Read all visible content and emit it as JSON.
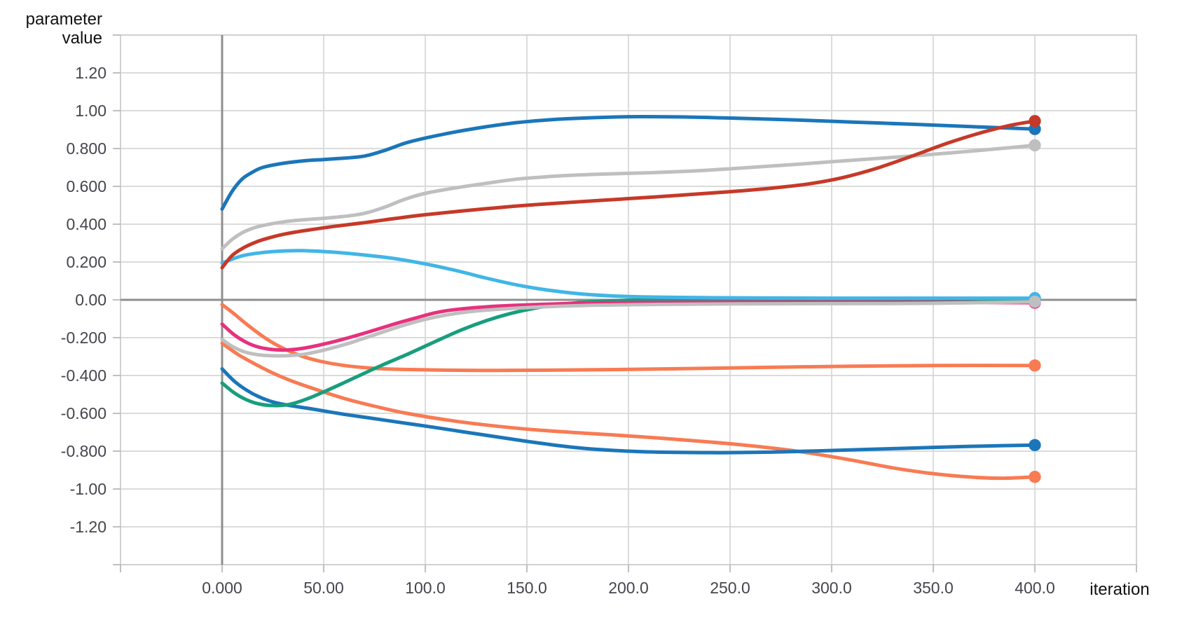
{
  "colors": {
    "background": "#ffffff",
    "grid": "#d6d6d6",
    "frame": "#c9c9c9",
    "zero_axis": "#8f8f8f",
    "tick_stub": "#b5b5b5",
    "tick_label": "#45454d",
    "axis_title": "#111111"
  },
  "chart_data": {
    "type": "line",
    "title": "",
    "xlabel": "iteration",
    "ylabel": "parameter value",
    "ylabel_line1": "parameter",
    "ylabel_line2": "value",
    "xlim": [
      -50,
      450
    ],
    "ylim": [
      -1.4,
      1.4
    ],
    "grid": true,
    "legend": "none",
    "x_axis": {
      "ticks": [
        {
          "value": 0,
          "label": "0.000"
        },
        {
          "value": 50,
          "label": "50.00"
        },
        {
          "value": 100,
          "label": "100.0"
        },
        {
          "value": 150,
          "label": "150.0"
        },
        {
          "value": 200,
          "label": "200.0"
        },
        {
          "value": 250,
          "label": "250.0"
        },
        {
          "value": 300,
          "label": "300.0"
        },
        {
          "value": 350,
          "label": "350.0"
        },
        {
          "value": 400,
          "label": "400.0"
        }
      ]
    },
    "y_axis": {
      "ticks": [
        {
          "value": 1.2,
          "label": "1.20"
        },
        {
          "value": 1.0,
          "label": "1.00"
        },
        {
          "value": 0.8,
          "label": "0.800"
        },
        {
          "value": 0.6,
          "label": "0.600"
        },
        {
          "value": 0.4,
          "label": "0.400"
        },
        {
          "value": 0.2,
          "label": "0.200"
        },
        {
          "value": 0.0,
          "label": "0.00"
        },
        {
          "value": -0.2,
          "label": "-0.200"
        },
        {
          "value": -0.4,
          "label": "-0.400"
        },
        {
          "value": -0.6,
          "label": "-0.600"
        },
        {
          "value": -0.8,
          "label": "-0.800"
        },
        {
          "value": -1.0,
          "label": "-1.00"
        },
        {
          "value": -1.2,
          "label": "-1.20"
        }
      ]
    },
    "series": [
      {
        "id": "orange-deep",
        "color": "#f87b53",
        "end_dot": true,
        "end_value": -0.936,
        "points": [
          [
            0,
            -0.23
          ],
          [
            8,
            -0.29
          ],
          [
            16,
            -0.338
          ],
          [
            25,
            -0.387
          ],
          [
            35,
            -0.432
          ],
          [
            48,
            -0.48
          ],
          [
            62,
            -0.527
          ],
          [
            76,
            -0.565
          ],
          [
            90,
            -0.598
          ],
          [
            110,
            -0.634
          ],
          [
            130,
            -0.662
          ],
          [
            155,
            -0.688
          ],
          [
            180,
            -0.706
          ],
          [
            205,
            -0.723
          ],
          [
            230,
            -0.743
          ],
          [
            255,
            -0.766
          ],
          [
            280,
            -0.796
          ],
          [
            305,
            -0.838
          ],
          [
            330,
            -0.888
          ],
          [
            350,
            -0.919
          ],
          [
            370,
            -0.938
          ],
          [
            385,
            -0.943
          ],
          [
            400,
            -0.936
          ]
        ]
      },
      {
        "id": "blue-low",
        "color": "#1b76b9",
        "end_dot": true,
        "end_value": -0.768,
        "points": [
          [
            0,
            -0.365
          ],
          [
            6,
            -0.43
          ],
          [
            12,
            -0.477
          ],
          [
            18,
            -0.512
          ],
          [
            25,
            -0.54
          ],
          [
            33,
            -0.558
          ],
          [
            45,
            -0.578
          ],
          [
            60,
            -0.605
          ],
          [
            75,
            -0.628
          ],
          [
            90,
            -0.652
          ],
          [
            105,
            -0.675
          ],
          [
            120,
            -0.7
          ],
          [
            135,
            -0.724
          ],
          [
            150,
            -0.748
          ],
          [
            165,
            -0.77
          ],
          [
            180,
            -0.787
          ],
          [
            200,
            -0.8
          ],
          [
            220,
            -0.806
          ],
          [
            245,
            -0.808
          ],
          [
            270,
            -0.805
          ],
          [
            295,
            -0.798
          ],
          [
            320,
            -0.79
          ],
          [
            350,
            -0.78
          ],
          [
            375,
            -0.773
          ],
          [
            400,
            -0.768
          ]
        ]
      },
      {
        "id": "orange-mid",
        "color": "#f87b53",
        "end_dot": true,
        "end_value": -0.347,
        "points": [
          [
            0,
            -0.025
          ],
          [
            6,
            -0.075
          ],
          [
            12,
            -0.128
          ],
          [
            20,
            -0.193
          ],
          [
            28,
            -0.245
          ],
          [
            38,
            -0.293
          ],
          [
            48,
            -0.324
          ],
          [
            60,
            -0.347
          ],
          [
            75,
            -0.362
          ],
          [
            90,
            -0.368
          ],
          [
            110,
            -0.372
          ],
          [
            135,
            -0.373
          ],
          [
            160,
            -0.372
          ],
          [
            190,
            -0.369
          ],
          [
            220,
            -0.365
          ],
          [
            250,
            -0.36
          ],
          [
            280,
            -0.355
          ],
          [
            310,
            -0.351
          ],
          [
            350,
            -0.347
          ],
          [
            400,
            -0.347
          ]
        ]
      },
      {
        "id": "green",
        "color": "#189e7d",
        "end_dot": true,
        "end_value": 0.004,
        "points": [
          [
            0,
            -0.44
          ],
          [
            6,
            -0.492
          ],
          [
            12,
            -0.528
          ],
          [
            18,
            -0.55
          ],
          [
            25,
            -0.559
          ],
          [
            33,
            -0.553
          ],
          [
            42,
            -0.523
          ],
          [
            52,
            -0.477
          ],
          [
            62,
            -0.428
          ],
          [
            72,
            -0.378
          ],
          [
            82,
            -0.33
          ],
          [
            92,
            -0.284
          ],
          [
            105,
            -0.22
          ],
          [
            118,
            -0.158
          ],
          [
            130,
            -0.11
          ],
          [
            142,
            -0.072
          ],
          [
            155,
            -0.042
          ],
          [
            168,
            -0.022
          ],
          [
            182,
            -0.01
          ],
          [
            200,
            -0.002
          ],
          [
            225,
            0.002
          ],
          [
            260,
            0.004
          ],
          [
            300,
            0.005
          ],
          [
            350,
            0.005
          ],
          [
            400,
            0.004
          ]
        ]
      },
      {
        "id": "cyan",
        "color": "#41b6e6",
        "end_dot": true,
        "end_value": 0.009,
        "points": [
          [
            0,
            0.195
          ],
          [
            10,
            0.233
          ],
          [
            20,
            0.25
          ],
          [
            30,
            0.258
          ],
          [
            40,
            0.26
          ],
          [
            55,
            0.252
          ],
          [
            70,
            0.237
          ],
          [
            85,
            0.218
          ],
          [
            100,
            0.19
          ],
          [
            115,
            0.155
          ],
          [
            130,
            0.115
          ],
          [
            145,
            0.079
          ],
          [
            160,
            0.052
          ],
          [
            175,
            0.033
          ],
          [
            190,
            0.022
          ],
          [
            210,
            0.015
          ],
          [
            235,
            0.012
          ],
          [
            260,
            0.01
          ],
          [
            300,
            0.009
          ],
          [
            350,
            0.009
          ],
          [
            400,
            0.009
          ]
        ]
      },
      {
        "id": "pink",
        "color": "#e7317e",
        "end_dot": true,
        "end_value": -0.015,
        "points": [
          [
            0,
            -0.128
          ],
          [
            6,
            -0.185
          ],
          [
            12,
            -0.225
          ],
          [
            18,
            -0.25
          ],
          [
            25,
            -0.263
          ],
          [
            32,
            -0.265
          ],
          [
            40,
            -0.256
          ],
          [
            50,
            -0.234
          ],
          [
            60,
            -0.207
          ],
          [
            72,
            -0.17
          ],
          [
            85,
            -0.127
          ],
          [
            95,
            -0.097
          ],
          [
            105,
            -0.068
          ],
          [
            115,
            -0.051
          ],
          [
            130,
            -0.037
          ],
          [
            145,
            -0.029
          ],
          [
            165,
            -0.021
          ],
          [
            190,
            -0.015
          ],
          [
            220,
            -0.013
          ],
          [
            260,
            -0.012
          ],
          [
            300,
            -0.012
          ],
          [
            350,
            -0.013
          ],
          [
            400,
            -0.015
          ]
        ]
      },
      {
        "id": "gray-low",
        "color": "#bfbfbf",
        "end_dot": true,
        "end_value": -0.01,
        "points": [
          [
            0,
            -0.21
          ],
          [
            6,
            -0.252
          ],
          [
            12,
            -0.278
          ],
          [
            20,
            -0.293
          ],
          [
            30,
            -0.296
          ],
          [
            40,
            -0.288
          ],
          [
            50,
            -0.266
          ],
          [
            62,
            -0.231
          ],
          [
            75,
            -0.185
          ],
          [
            88,
            -0.139
          ],
          [
            100,
            -0.103
          ],
          [
            112,
            -0.077
          ],
          [
            125,
            -0.059
          ],
          [
            140,
            -0.047
          ],
          [
            160,
            -0.036
          ],
          [
            185,
            -0.028
          ],
          [
            215,
            -0.024
          ],
          [
            255,
            -0.021
          ],
          [
            300,
            -0.02
          ],
          [
            350,
            -0.018
          ],
          [
            400,
            -0.01
          ]
        ]
      },
      {
        "id": "blue-top",
        "color": "#1b76b9",
        "end_dot": true,
        "end_value": 0.903,
        "points": [
          [
            0,
            0.48
          ],
          [
            5,
            0.575
          ],
          [
            10,
            0.64
          ],
          [
            15,
            0.675
          ],
          [
            20,
            0.7
          ],
          [
            30,
            0.722
          ],
          [
            40,
            0.735
          ],
          [
            50,
            0.742
          ],
          [
            60,
            0.749
          ],
          [
            70,
            0.76
          ],
          [
            80,
            0.79
          ],
          [
            90,
            0.828
          ],
          [
            100,
            0.855
          ],
          [
            115,
            0.888
          ],
          [
            130,
            0.915
          ],
          [
            145,
            0.937
          ],
          [
            160,
            0.951
          ],
          [
            180,
            0.962
          ],
          [
            200,
            0.968
          ],
          [
            225,
            0.967
          ],
          [
            250,
            0.961
          ],
          [
            280,
            0.952
          ],
          [
            310,
            0.94
          ],
          [
            340,
            0.928
          ],
          [
            370,
            0.915
          ],
          [
            400,
            0.903
          ]
        ]
      },
      {
        "id": "gray-top",
        "color": "#bfbfbf",
        "end_dot": true,
        "end_value": 0.817,
        "points": [
          [
            0,
            0.27
          ],
          [
            5,
            0.32
          ],
          [
            10,
            0.355
          ],
          [
            15,
            0.378
          ],
          [
            20,
            0.393
          ],
          [
            30,
            0.412
          ],
          [
            40,
            0.423
          ],
          [
            50,
            0.431
          ],
          [
            60,
            0.441
          ],
          [
            70,
            0.457
          ],
          [
            80,
            0.49
          ],
          [
            90,
            0.532
          ],
          [
            100,
            0.563
          ],
          [
            115,
            0.592
          ],
          [
            130,
            0.616
          ],
          [
            145,
            0.638
          ],
          [
            160,
            0.651
          ],
          [
            175,
            0.66
          ],
          [
            190,
            0.666
          ],
          [
            210,
            0.672
          ],
          [
            235,
            0.683
          ],
          [
            260,
            0.7
          ],
          [
            285,
            0.718
          ],
          [
            310,
            0.738
          ],
          [
            335,
            0.757
          ],
          [
            360,
            0.778
          ],
          [
            380,
            0.797
          ],
          [
            400,
            0.817
          ]
        ]
      },
      {
        "id": "red",
        "color": "#c63928",
        "end_dot": true,
        "end_value": 0.945,
        "points": [
          [
            0,
            0.17
          ],
          [
            5,
            0.235
          ],
          [
            10,
            0.272
          ],
          [
            15,
            0.298
          ],
          [
            20,
            0.318
          ],
          [
            30,
            0.346
          ],
          [
            42,
            0.368
          ],
          [
            55,
            0.388
          ],
          [
            70,
            0.408
          ],
          [
            85,
            0.43
          ],
          [
            100,
            0.45
          ],
          [
            125,
            0.477
          ],
          [
            150,
            0.5
          ],
          [
            175,
            0.518
          ],
          [
            200,
            0.535
          ],
          [
            225,
            0.553
          ],
          [
            250,
            0.572
          ],
          [
            270,
            0.59
          ],
          [
            288,
            0.612
          ],
          [
            305,
            0.645
          ],
          [
            322,
            0.695
          ],
          [
            340,
            0.762
          ],
          [
            358,
            0.832
          ],
          [
            375,
            0.888
          ],
          [
            388,
            0.923
          ],
          [
            400,
            0.945
          ]
        ]
      }
    ]
  }
}
